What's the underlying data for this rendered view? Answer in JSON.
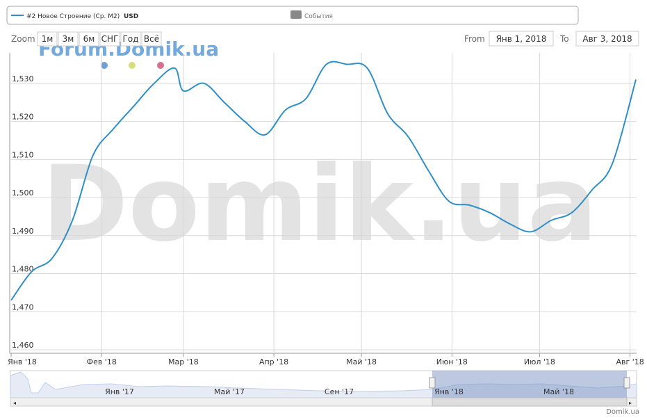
{
  "chart_data": {
    "type": "line",
    "series": [
      {
        "name": "#2 Новое Строение (Ср. М2)",
        "color": "#2f8fc7",
        "x": [
          0,
          7,
          14,
          21,
          28,
          35,
          42,
          49,
          56,
          59,
          66,
          73,
          80,
          87,
          94,
          101,
          108,
          115,
          122,
          129,
          136,
          143,
          150,
          157,
          164,
          171,
          178,
          185,
          192,
          199,
          206,
          214
        ],
        "values": [
          1473,
          1480.5,
          1484,
          1494,
          1511,
          1518,
          1524,
          1530,
          1534,
          1528,
          1530,
          1525,
          1520,
          1516.5,
          1523,
          1526,
          1535,
          1535,
          1534,
          1522,
          1516,
          1507,
          1499,
          1498,
          1496,
          1493,
          1491,
          1494,
          1496,
          1502,
          1509,
          1531
        ]
      }
    ],
    "legend_unit": "USD",
    "events_label": "События",
    "xlim": [
      0,
      214
    ],
    "xticks": [
      {
        "value": 0,
        "label": "Янв '18"
      },
      {
        "value": 31,
        "label": "Фев '18"
      },
      {
        "value": 59,
        "label": "Мар '18"
      },
      {
        "value": 90,
        "label": "Апр '18"
      },
      {
        "value": 120,
        "label": "Май '18"
      },
      {
        "value": 151,
        "label": "Июн '18"
      },
      {
        "value": 181,
        "label": "Июл '18"
      },
      {
        "value": 212,
        "label": "Авг '18"
      }
    ],
    "ylim": [
      1460,
      1536
    ],
    "yticks": [
      {
        "value": 1460,
        "label": "1,460"
      },
      {
        "value": 1470,
        "label": "1,470"
      },
      {
        "value": 1480,
        "label": "1,480"
      },
      {
        "value": 1490,
        "label": "1,490"
      },
      {
        "value": 1500,
        "label": "1,500"
      },
      {
        "value": 1510,
        "label": "1,510"
      },
      {
        "value": 1520,
        "label": "1,520"
      },
      {
        "value": 1530,
        "label": "1,530"
      }
    ],
    "grid": true,
    "range_selector": {
      "zoom": "Zoom",
      "buttons": [
        "1м",
        "3м",
        "6м",
        "СНГ",
        "Год",
        "Всё"
      ],
      "from": "From",
      "from_date": "Янв 1, 2018",
      "to": "To",
      "to_date": "Авг 3, 2018"
    },
    "navigator_labels": [
      "Янв '17",
      "Май '17",
      "Сен '17",
      "Янв '18",
      "Май '18"
    ],
    "watermark": "Domik.ua",
    "forum_watermark": "Forum.Domik.ua",
    "credits": "Domik.ua"
  }
}
